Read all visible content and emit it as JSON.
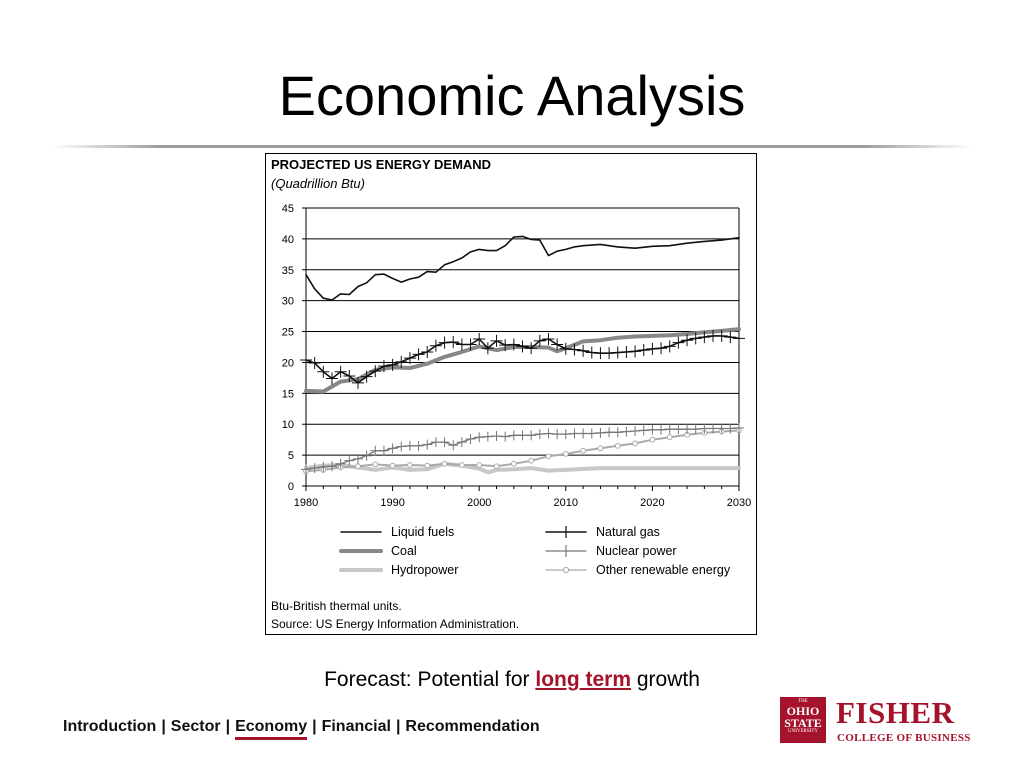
{
  "slide": {
    "title": "Economic Analysis",
    "caption_prefix": "Forecast: Potential for ",
    "caption_link": "long term",
    "caption_suffix": " growth"
  },
  "nav": {
    "items": [
      {
        "label": "Introduction",
        "active": false
      },
      {
        "label": "Sector",
        "active": false
      },
      {
        "label": "Economy",
        "active": true
      },
      {
        "label": "Financial",
        "active": false
      },
      {
        "label": "Recommendation",
        "active": false
      }
    ],
    "separator": "|"
  },
  "logo": {
    "seal_lines": [
      "THE",
      "OHIO",
      "STATE",
      "UNIVERSITY"
    ],
    "name": "FISHER",
    "subtitle": "COLLEGE OF BUSINESS"
  },
  "colors": {
    "accent": "#a4122b"
  },
  "chart_data": {
    "type": "line",
    "title": "PROJECTED US ENERGY DEMAND",
    "subtitle": "(Quadrillion Btu)",
    "xlim": [
      1980,
      2030
    ],
    "ylim": [
      0,
      45
    ],
    "xticks": [
      1980,
      1990,
      2000,
      2010,
      2020,
      2030
    ],
    "yticks": [
      0,
      5,
      10,
      15,
      20,
      25,
      30,
      35,
      40,
      45
    ],
    "grid": "horizontal",
    "legend_position": "bottom",
    "series": [
      {
        "name": "Liquid fuels",
        "color": "#111111",
        "style": "solid-thin",
        "x": [
          1980,
          1981,
          1982,
          1983,
          1984,
          1985,
          1986,
          1987,
          1988,
          1989,
          1990,
          1991,
          1992,
          1993,
          1994,
          1995,
          1996,
          1997,
          1998,
          1999,
          2000,
          2001,
          2002,
          2003,
          2004,
          2005,
          2006,
          2007,
          2008,
          2009,
          2010,
          2011,
          2012,
          2014,
          2016,
          2018,
          2020,
          2022,
          2024,
          2026,
          2028,
          2030
        ],
        "y": [
          34.2,
          31.9,
          30.4,
          30.1,
          31.1,
          31,
          32.3,
          32.9,
          34.2,
          34.3,
          33.6,
          33,
          33.5,
          33.8,
          34.7,
          34.6,
          35.8,
          36.3,
          36.9,
          37.9,
          38.3,
          38.1,
          38.1,
          38.9,
          40.3,
          40.4,
          39.9,
          39.8,
          37.3,
          38,
          38.3,
          38.7,
          38.9,
          39.1,
          38.7,
          38.5,
          38.8,
          38.9,
          39.3,
          39.6,
          39.8,
          40.2
        ]
      },
      {
        "name": "Natural gas",
        "color": "#111111",
        "style": "marker-plus",
        "x": [
          1980,
          1981,
          1982,
          1983,
          1984,
          1985,
          1986,
          1987,
          1988,
          1989,
          1990,
          1991,
          1992,
          1993,
          1994,
          1995,
          1996,
          1997,
          1998,
          1999,
          2000,
          2001,
          2002,
          2003,
          2004,
          2005,
          2006,
          2007,
          2008,
          2009,
          2010,
          2011,
          2012,
          2013,
          2014,
          2015,
          2016,
          2017,
          2018,
          2019,
          2020,
          2021,
          2022,
          2023,
          2024,
          2025,
          2026,
          2027,
          2028,
          2029,
          2030
        ],
        "y": [
          20.4,
          19.9,
          18.5,
          17.4,
          18.5,
          17.8,
          16.7,
          17.7,
          18.6,
          19.4,
          19.6,
          20.1,
          20.7,
          21.3,
          21.7,
          22.7,
          23.2,
          23.3,
          22.9,
          22.9,
          23.8,
          22.3,
          23.5,
          22.8,
          22.9,
          22.6,
          22.3,
          23.5,
          23.8,
          22.9,
          22.2,
          22.1,
          21.9,
          21.6,
          21.5,
          21.5,
          21.6,
          21.7,
          21.8,
          22,
          22.2,
          22.3,
          22.6,
          23.2,
          23.6,
          23.9,
          24.1,
          24.3,
          24.3,
          24.1,
          23.9
        ]
      },
      {
        "name": "Coal",
        "color": "#888888",
        "style": "solid-thick",
        "x": [
          1980,
          1982,
          1984,
          1986,
          1988,
          1990,
          1992,
          1994,
          1996,
          1998,
          2000,
          2002,
          2004,
          2006,
          2008,
          2009,
          2010,
          2012,
          2014,
          2016,
          2018,
          2020,
          2022,
          2024,
          2026,
          2028,
          2030
        ],
        "y": [
          15.4,
          15.3,
          16.9,
          17.3,
          18.8,
          19.2,
          19.1,
          19.8,
          20.9,
          21.7,
          22.6,
          22,
          22.5,
          22.5,
          22.4,
          21.8,
          22.3,
          23.4,
          23.6,
          24,
          24.2,
          24.3,
          24.4,
          24.6,
          24.9,
          25.1,
          25.4
        ]
      },
      {
        "name": "Nuclear power",
        "color": "#777777",
        "style": "marker-plus-thin",
        "x": [
          1980,
          1981,
          1982,
          1983,
          1984,
          1985,
          1986,
          1987,
          1988,
          1989,
          1990,
          1991,
          1992,
          1993,
          1994,
          1995,
          1996,
          1997,
          1998,
          1999,
          2000,
          2001,
          2002,
          2003,
          2004,
          2005,
          2006,
          2007,
          2008,
          2009,
          2010,
          2011,
          2012,
          2013,
          2014,
          2015,
          2016,
          2017,
          2018,
          2019,
          2020,
          2021,
          2022,
          2023,
          2024,
          2025,
          2026,
          2027,
          2028,
          2029,
          2030
        ],
        "y": [
          2.7,
          2.9,
          3.1,
          3.2,
          3.6,
          4.1,
          4.4,
          4.9,
          5.7,
          5.7,
          6.1,
          6.4,
          6.5,
          6.5,
          6.7,
          7.1,
          7.1,
          6.6,
          7.1,
          7.6,
          7.9,
          8,
          8.1,
          8,
          8.2,
          8.2,
          8.2,
          8.4,
          8.5,
          8.4,
          8.4,
          8.5,
          8.5,
          8.5,
          8.6,
          8.7,
          8.7,
          8.8,
          8.9,
          9,
          9.1,
          9.1,
          9.2,
          9.2,
          9.2,
          9.2,
          9.3,
          9.3,
          9.3,
          9.3,
          9.4
        ]
      },
      {
        "name": "Hydropower",
        "color": "#c8c8c8",
        "style": "solid-thick",
        "x": [
          1980,
          1982,
          1984,
          1986,
          1988,
          1990,
          1992,
          1994,
          1996,
          1998,
          2000,
          2001,
          2002,
          2004,
          2006,
          2008,
          2010,
          2014,
          2018,
          2022,
          2026,
          2030
        ],
        "y": [
          2.9,
          3.3,
          3.4,
          3,
          2.6,
          3,
          2.6,
          2.7,
          3.6,
          3.3,
          2.8,
          2.2,
          2.6,
          2.7,
          2.9,
          2.5,
          2.6,
          2.9,
          2.9,
          2.9,
          2.9,
          2.9
        ]
      },
      {
        "name": "Other renewable energy",
        "color": "#aaaaaa",
        "style": "marker-circle",
        "x": [
          1980,
          1982,
          1984,
          1986,
          1988,
          1990,
          1992,
          1994,
          1996,
          1998,
          2000,
          2002,
          2004,
          2006,
          2008,
          2010,
          2012,
          2014,
          2016,
          2018,
          2020,
          2022,
          2024,
          2026,
          2028,
          2030
        ],
        "y": [
          2.4,
          2.6,
          3,
          3.2,
          3.5,
          3.3,
          3.4,
          3.3,
          3.6,
          3.4,
          3.4,
          3.2,
          3.6,
          4.1,
          4.8,
          5.2,
          5.7,
          6.1,
          6.5,
          6.9,
          7.5,
          7.9,
          8.3,
          8.6,
          8.8,
          9
        ]
      }
    ],
    "footnotes": [
      "Btu-British thermal units.",
      "Source: US Energy Information Administration."
    ]
  }
}
